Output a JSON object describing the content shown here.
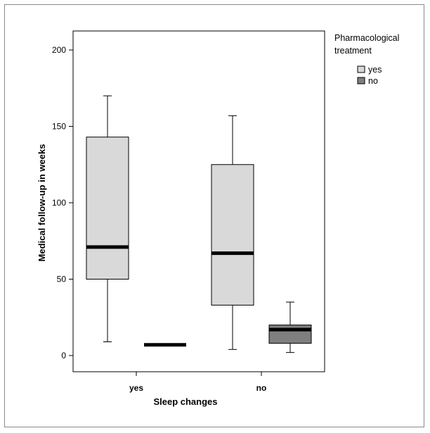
{
  "chart_data": {
    "type": "boxplot",
    "xlabel": "Sleep changes",
    "ylabel": "Medical follow-up in weeks",
    "ylim": [
      0,
      200
    ],
    "yticks": [
      0,
      50,
      100,
      150,
      200
    ],
    "categories": [
      "yes",
      "no"
    ],
    "legend": {
      "title_lines": [
        "Pharmacological",
        "treatment"
      ],
      "placement": "top-right, outside plot"
    },
    "series": [
      {
        "name": "yes",
        "color": "#d9d9d9",
        "boxes": [
          {
            "category": "yes",
            "whisker_low": 9,
            "q1": 50,
            "median": 71,
            "q3": 143,
            "whisker_high": 170
          },
          {
            "category": "no",
            "whisker_low": 4,
            "q1": 33,
            "median": 67,
            "q3": 125,
            "whisker_high": 157
          }
        ]
      },
      {
        "name": "no",
        "color": "#7f7f7f",
        "boxes": [
          {
            "category": "yes",
            "whisker_low": 7,
            "q1": 7,
            "median": 7,
            "q3": 7,
            "whisker_high": 7
          },
          {
            "category": "no",
            "whisker_low": 2,
            "q1": 8,
            "median": 17,
            "q3": 20,
            "whisker_high": 35
          }
        ]
      }
    ],
    "grid": false
  }
}
